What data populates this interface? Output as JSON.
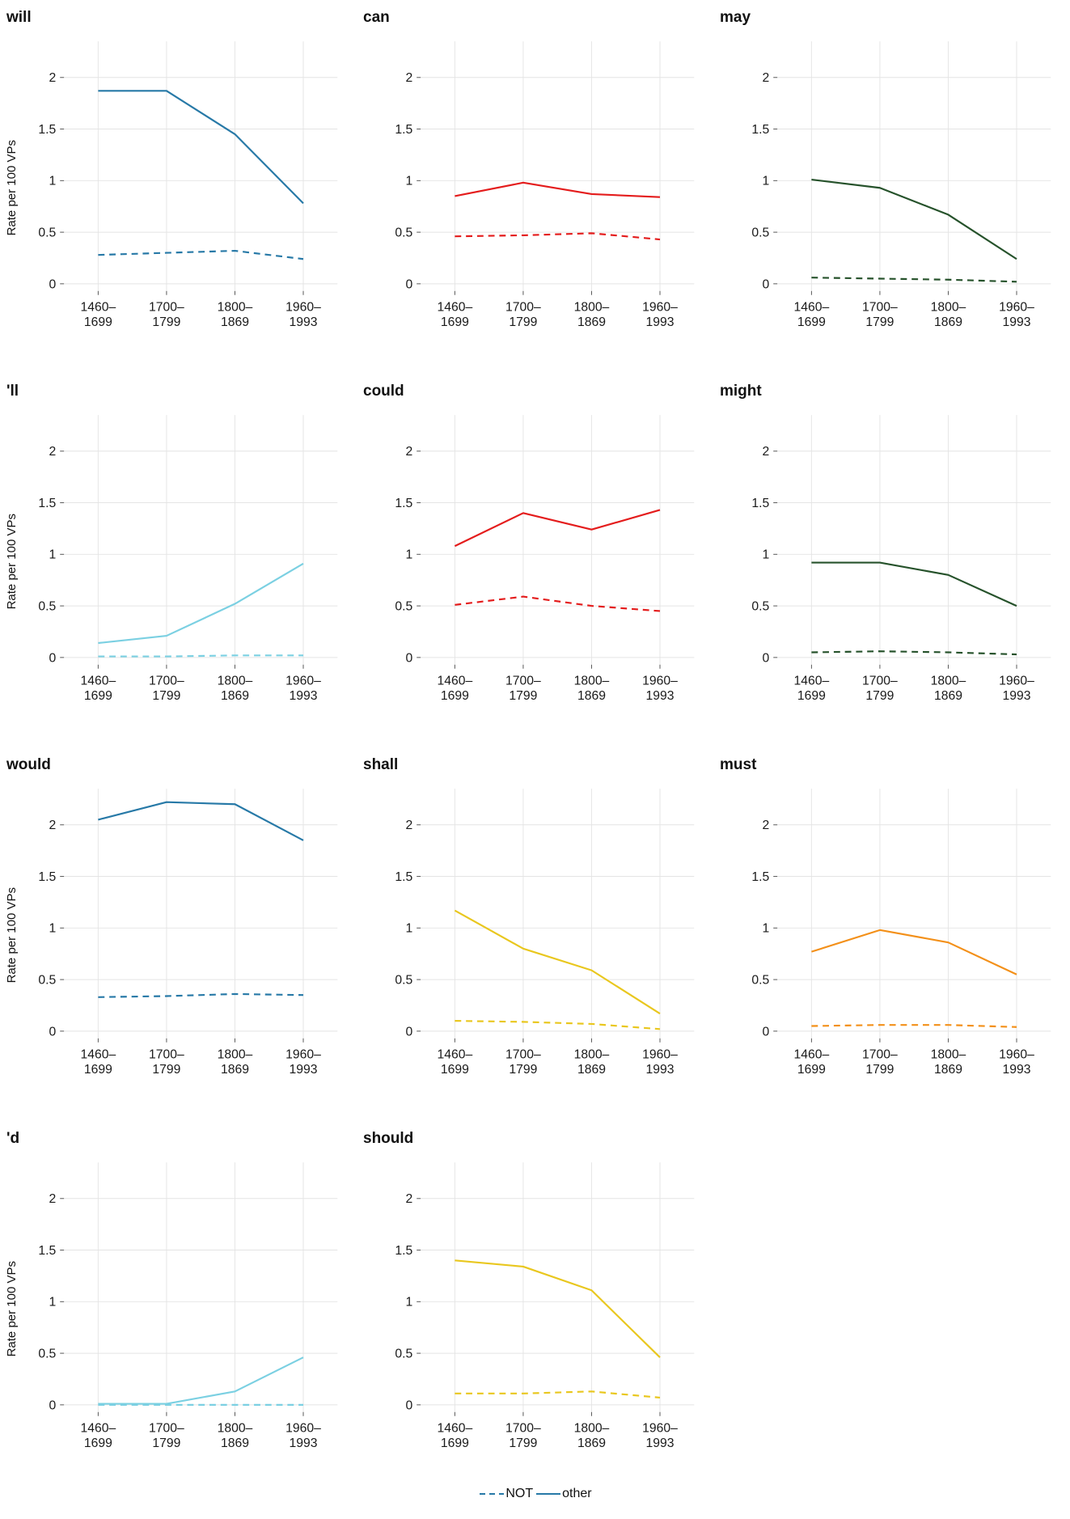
{
  "chart_data": {
    "type": "line",
    "title": "",
    "ylabel": "Rate per 100 VPs",
    "xlabel": "",
    "ylim": [
      0,
      2.35
    ],
    "yticks": [
      0,
      0.5,
      1,
      1.5,
      2
    ],
    "categories": [
      "1460–1699",
      "1700–1799",
      "1800–1869",
      "1960–1993"
    ],
    "x_tick_labels": [
      [
        "1460–",
        "1699"
      ],
      [
        "1700–",
        "1799"
      ],
      [
        "1800–",
        "1869"
      ],
      [
        "1960–",
        "1993"
      ]
    ],
    "grid": true,
    "legend": {
      "position": "bottom",
      "color": "#2779a7",
      "items": [
        {
          "label": "NOT",
          "style": "dashed"
        },
        {
          "label": "other",
          "style": "solid"
        }
      ]
    },
    "panels": [
      {
        "title": "will",
        "color": "#2779a7",
        "series": [
          {
            "name": "NOT",
            "style": "dashed",
            "values": [
              0.28,
              0.3,
              0.32,
              0.24
            ]
          },
          {
            "name": "other",
            "style": "solid",
            "values": [
              1.87,
              1.87,
              1.45,
              0.78
            ]
          }
        ]
      },
      {
        "title": "can",
        "color": "#e41c1c",
        "series": [
          {
            "name": "NOT",
            "style": "dashed",
            "values": [
              0.46,
              0.47,
              0.49,
              0.43
            ]
          },
          {
            "name": "other",
            "style": "solid",
            "values": [
              0.85,
              0.98,
              0.87,
              0.84
            ]
          }
        ]
      },
      {
        "title": "may",
        "color": "#26522b",
        "series": [
          {
            "name": "NOT",
            "style": "dashed",
            "values": [
              0.06,
              0.05,
              0.04,
              0.02
            ]
          },
          {
            "name": "other",
            "style": "solid",
            "values": [
              1.01,
              0.93,
              0.67,
              0.24
            ]
          }
        ]
      },
      {
        "title": "'ll",
        "color": "#7bd0e2",
        "series": [
          {
            "name": "NOT",
            "style": "dashed",
            "values": [
              0.01,
              0.01,
              0.02,
              0.02
            ]
          },
          {
            "name": "other",
            "style": "solid",
            "values": [
              0.14,
              0.21,
              0.52,
              0.91
            ]
          }
        ]
      },
      {
        "title": "could",
        "color": "#e41c1c",
        "series": [
          {
            "name": "NOT",
            "style": "dashed",
            "values": [
              0.51,
              0.59,
              0.5,
              0.45
            ]
          },
          {
            "name": "other",
            "style": "solid",
            "values": [
              1.08,
              1.4,
              1.24,
              1.43
            ]
          }
        ]
      },
      {
        "title": "might",
        "color": "#26522b",
        "series": [
          {
            "name": "NOT",
            "style": "dashed",
            "values": [
              0.05,
              0.06,
              0.05,
              0.03
            ]
          },
          {
            "name": "other",
            "style": "solid",
            "values": [
              0.92,
              0.92,
              0.8,
              0.5
            ]
          }
        ]
      },
      {
        "title": "would",
        "color": "#2779a7",
        "series": [
          {
            "name": "NOT",
            "style": "dashed",
            "values": [
              0.33,
              0.34,
              0.36,
              0.35
            ]
          },
          {
            "name": "other",
            "style": "solid",
            "values": [
              2.05,
              2.22,
              2.2,
              1.85
            ]
          }
        ]
      },
      {
        "title": "shall",
        "color": "#e9c71e",
        "series": [
          {
            "name": "NOT",
            "style": "dashed",
            "values": [
              0.1,
              0.09,
              0.07,
              0.02
            ]
          },
          {
            "name": "other",
            "style": "solid",
            "values": [
              1.17,
              0.8,
              0.59,
              0.17
            ]
          }
        ]
      },
      {
        "title": "must",
        "color": "#f39019",
        "series": [
          {
            "name": "NOT",
            "style": "dashed",
            "values": [
              0.05,
              0.06,
              0.06,
              0.04
            ]
          },
          {
            "name": "other",
            "style": "solid",
            "values": [
              0.77,
              0.98,
              0.86,
              0.55
            ]
          }
        ]
      },
      {
        "title": "'d",
        "color": "#7bd0e2",
        "series": [
          {
            "name": "NOT",
            "style": "dashed",
            "values": [
              0.0,
              0.0,
              0.0,
              0.0
            ]
          },
          {
            "name": "other",
            "style": "solid",
            "values": [
              0.01,
              0.01,
              0.13,
              0.46
            ]
          }
        ]
      },
      {
        "title": "should",
        "color": "#e9c71e",
        "series": [
          {
            "name": "NOT",
            "style": "dashed",
            "values": [
              0.11,
              0.11,
              0.13,
              0.07
            ]
          },
          {
            "name": "other",
            "style": "solid",
            "values": [
              1.4,
              1.34,
              1.11,
              0.46
            ]
          }
        ]
      }
    ]
  }
}
